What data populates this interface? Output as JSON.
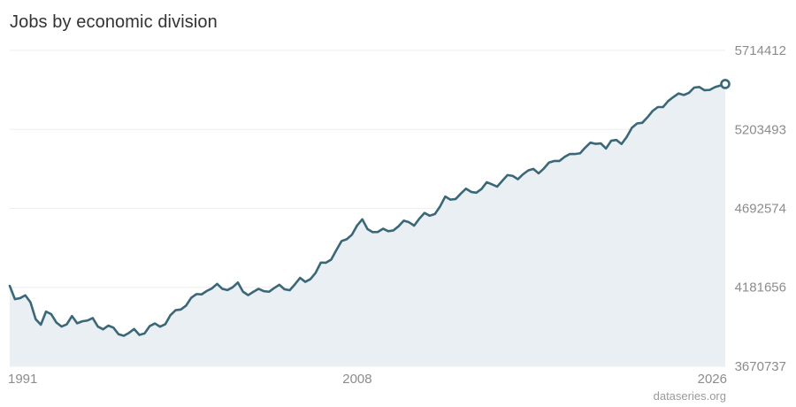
{
  "chart_data": {
    "type": "area",
    "title": "Jobs by economic division",
    "source": "dataseries.org",
    "xlabel": "",
    "ylabel": "",
    "x_start": "1991-01",
    "x_end": "2026-01",
    "x_step": "quarter",
    "xtick_labels": [
      "1991",
      "2008",
      "2026"
    ],
    "yticks": [
      3670737,
      4181656,
      4692574,
      5203493,
      5714412
    ],
    "ylim": [
      3670737,
      5714412
    ],
    "grid": true,
    "colors": {
      "line": "#3a6878",
      "fill": "#e9eff2",
      "grid": "#eeeeee"
    },
    "series": [
      {
        "values": [
          4191000,
          4105000,
          4112000,
          4130000,
          4085000,
          3976000,
          3940000,
          4025000,
          4008000,
          3954000,
          3928000,
          3942000,
          3996000,
          3949000,
          3962000,
          3967000,
          3983000,
          3928000,
          3910000,
          3934000,
          3921000,
          3878000,
          3868000,
          3887000,
          3912000,
          3874000,
          3883000,
          3931000,
          3948000,
          3927000,
          3943000,
          4002000,
          4034000,
          4038000,
          4063000,
          4114000,
          4138000,
          4136000,
          4158000,
          4175000,
          4204000,
          4172000,
          4164000,
          4182000,
          4213000,
          4153000,
          4131000,
          4153000,
          4172000,
          4157000,
          4153000,
          4177000,
          4198000,
          4169000,
          4163000,
          4201000,
          4243000,
          4217000,
          4235000,
          4276000,
          4342000,
          4341000,
          4361000,
          4423000,
          4481000,
          4493000,
          4522000,
          4582000,
          4622000,
          4559000,
          4539000,
          4540000,
          4561000,
          4545000,
          4550000,
          4577000,
          4613000,
          4603000,
          4581000,
          4626000,
          4663000,
          4645000,
          4656000,
          4705000,
          4769000,
          4749000,
          4753000,
          4788000,
          4820000,
          4799000,
          4794000,
          4818000,
          4862000,
          4848000,
          4833000,
          4871000,
          4908000,
          4903000,
          4881000,
          4913000,
          4938000,
          4948000,
          4919000,
          4950000,
          4989000,
          4999000,
          4999000,
          5025000,
          5044000,
          5044000,
          5049000,
          5086000,
          5118000,
          5110000,
          5113000,
          5080000,
          5130000,
          5135000,
          5109000,
          5155000,
          5214000,
          5242000,
          5246000,
          5282000,
          5323000,
          5348000,
          5348000,
          5387000,
          5413000,
          5436000,
          5426000,
          5440000,
          5474000,
          5478000,
          5457000,
          5459000,
          5477000,
          5487000,
          5497000
        ]
      }
    ]
  }
}
